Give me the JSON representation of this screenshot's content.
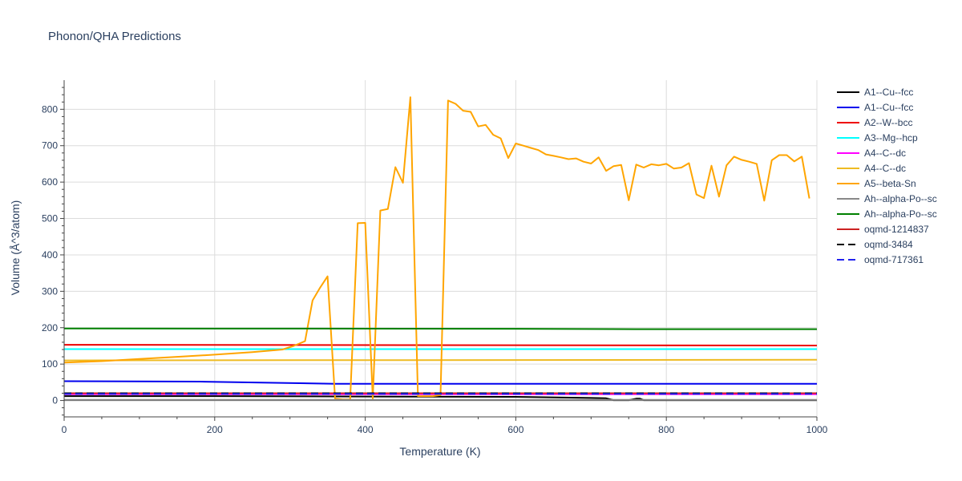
{
  "chart_data": {
    "type": "line",
    "title": "Phonon/QHA Predictions",
    "xlabel": "Temperature (K)",
    "ylabel": "Volume (Å^3/atom)",
    "xlim": [
      0,
      1000
    ],
    "ylim": [
      -45,
      880
    ],
    "xticks": [
      0,
      200,
      400,
      600,
      800,
      1000
    ],
    "yticks": [
      0,
      100,
      200,
      300,
      400,
      500,
      600,
      700,
      800
    ],
    "grid": true,
    "legend_position": "right",
    "series": [
      {
        "name": "A1--Cu--fcc",
        "color": "#000000",
        "dash": "solid",
        "x": [
          0,
          200,
          400,
          600,
          700,
          720,
          730,
          750,
          760,
          765,
          770,
          780,
          1000
        ],
        "y": [
          12,
          12,
          11,
          10,
          7,
          6,
          1,
          1,
          5,
          5,
          1,
          1,
          1
        ]
      },
      {
        "name": "A1--Cu--fcc",
        "color": "#0000ee",
        "dash": "solid",
        "x": [
          0,
          180,
          360,
          600,
          800,
          1000
        ],
        "y": [
          53,
          52,
          46,
          46,
          46,
          46
        ]
      },
      {
        "name": "A2--W--bcc",
        "color": "#ee0000",
        "dash": "solid",
        "x": [
          0,
          1000
        ],
        "y": [
          153,
          151
        ]
      },
      {
        "name": "A3--Mg--hcp",
        "color": "#00ffff",
        "dash": "solid",
        "x": [
          0,
          1000
        ],
        "y": [
          141,
          141
        ]
      },
      {
        "name": "A4--C--dc",
        "color": "#ff00ff",
        "dash": "solid",
        "x": [
          0,
          1000
        ],
        "y": [
          17,
          17
        ]
      },
      {
        "name": "A4--C--dc",
        "color": "#eebb22",
        "dash": "solid",
        "x": [
          0,
          1000
        ],
        "y": [
          110,
          112
        ]
      },
      {
        "name": "A5--beta-Sn",
        "color": "#ffa500",
        "dash": "solid",
        "x": [
          0,
          50,
          100,
          150,
          200,
          250,
          290,
          305,
          320,
          330,
          340,
          350,
          360,
          370,
          380,
          390,
          400,
          410,
          420,
          430,
          440,
          450,
          460,
          470,
          480,
          490,
          500,
          510,
          520,
          530,
          540,
          550,
          560,
          570,
          580,
          590,
          600,
          610,
          620,
          630,
          640,
          650,
          660,
          670,
          680,
          690,
          700,
          710,
          720,
          730,
          740,
          750,
          760,
          770,
          780,
          790,
          800,
          810,
          820,
          830,
          840,
          850,
          860,
          870,
          880,
          890,
          900,
          910,
          920,
          930,
          940,
          950,
          960,
          970,
          980,
          990
        ],
        "y": [
          104,
          108,
          114,
          120,
          126,
          133,
          140,
          150,
          163,
          275,
          310,
          341,
          5,
          3,
          3,
          487,
          488,
          5,
          522,
          526,
          641,
          598,
          833,
          12,
          12,
          12,
          15,
          824,
          815,
          796,
          793,
          753,
          757,
          730,
          720,
          666,
          706,
          700,
          694,
          688,
          676,
          672,
          668,
          663,
          665,
          656,
          651,
          668,
          631,
          644,
          647,
          550,
          648,
          640,
          649,
          646,
          650,
          637,
          640,
          652,
          566,
          556,
          645,
          560,
          646,
          670,
          661,
          656,
          650,
          549,
          660,
          674,
          674,
          657,
          670,
          555
        ]
      },
      {
        "name": "Ah--alpha-Po--sc",
        "color": "#888888",
        "dash": "solid",
        "x": [
          0,
          1000
        ],
        "y": [
          2,
          2
        ]
      },
      {
        "name": "Ah--alpha-Po--sc",
        "color": "#008000",
        "dash": "solid",
        "x": [
          0,
          600,
          760,
          1000
        ],
        "y": [
          198,
          197,
          196,
          196
        ]
      },
      {
        "name": "oqmd-1214837",
        "color": "#cc2222",
        "dash": "solid",
        "x": [
          0,
          1000
        ],
        "y": [
          20,
          20
        ]
      },
      {
        "name": "oqmd-3484",
        "color": "#000000",
        "dash": "dash",
        "x": [
          0,
          1000
        ],
        "y": [
          20,
          20
        ]
      },
      {
        "name": "oqmd-717361",
        "color": "#2222ee",
        "dash": "dash",
        "x": [
          0,
          1000
        ],
        "y": [
          18,
          18
        ]
      }
    ]
  }
}
